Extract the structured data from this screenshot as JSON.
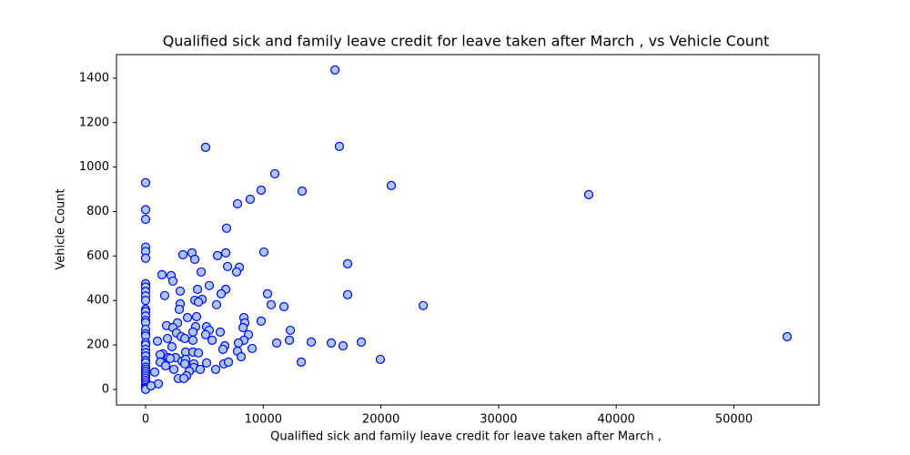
{
  "chart_data": {
    "type": "scatter",
    "title": "Qualified sick and family leave credit for leave taken after March , vs Vehicle Count",
    "x_label": "Qualified sick and family leave credit for leave taken after March ,",
    "y_label": "Vehicle Count",
    "color": "#a8c8f0",
    "edge_color": "#0000ff",
    "xlim": [
      -2475,
      57230
    ],
    "ylim": [
      -70,
      1506
    ],
    "xticks": [
      0,
      10000,
      20000,
      30000,
      40000,
      50000
    ],
    "yticks": [
      0,
      200,
      400,
      600,
      800,
      1000,
      1200,
      1400
    ],
    "x": [
      0,
      0,
      0,
      0,
      0,
      0,
      0,
      0,
      0,
      0,
      0,
      0,
      0,
      0,
      0,
      0,
      0,
      0,
      0,
      0,
      0,
      0,
      0,
      0,
      0,
      0,
      0,
      0,
      0,
      0,
      0,
      0,
      0,
      0,
      0,
      0,
      0,
      0,
      16090,
      5100,
      16470,
      10980,
      20880,
      9820,
      13300,
      8890,
      7810,
      37660,
      6880,
      3940,
      3170,
      6810,
      10050,
      6110,
      4180,
      17170,
      6960,
      7970,
      7730,
      4720,
      1390,
      2170,
      2320,
      5410,
      4410,
      6810,
      2940,
      10360,
      17170,
      1620,
      6420,
      4180,
      4800,
      4490,
      2940,
      10670,
      11760,
      6030,
      23590,
      2860,
      3560,
      4330,
      8350,
      8430,
      9820,
      2710,
      1780,
      2320,
      5180,
      4250,
      8280,
      2630,
      4020,
      6340,
      5410,
      12300,
      3020,
      8740,
      3330,
      5100,
      1860,
      5650,
      4020,
      8350,
      12220,
      1010,
      54520,
      6730,
      2240,
      7890,
      11140,
      14080,
      15780,
      16780,
      18330,
      6570,
      9050,
      1470,
      1240,
      3400,
      4020,
      4490,
      7810,
      1930,
      2550,
      2090,
      8120,
      1240,
      3090,
      3400,
      3330,
      1700,
      4100,
      5180,
      6650,
      7040,
      13230,
      19950,
      2400,
      4100,
      4640,
      5960,
      3710,
      770,
      3480,
      2780,
      3250,
      1080,
      460
    ],
    "values": [
      930,
      808,
      765,
      640,
      620,
      590,
      475,
      460,
      440,
      420,
      400,
      360,
      350,
      330,
      310,
      300,
      270,
      250,
      240,
      210,
      200,
      180,
      165,
      150,
      130,
      120,
      100,
      90,
      80,
      70,
      60,
      50,
      40,
      30,
      20,
      10,
      5,
      0,
      1437,
      1089,
      1093,
      970,
      917,
      896,
      892,
      855,
      835,
      876,
      725,
      614,
      606,
      614,
      618,
      602,
      585,
      565,
      553,
      549,
      528,
      528,
      516,
      512,
      487,
      467,
      450,
      450,
      442,
      430,
      426,
      422,
      430,
      401,
      405,
      393,
      385,
      381,
      372,
      381,
      377,
      360,
      323,
      327,
      323,
      299,
      307,
      299,
      287,
      278,
      282,
      282,
      278,
      254,
      258,
      258,
      266,
      266,
      237,
      246,
      229,
      246,
      229,
      221,
      221,
      221,
      221,
      217,
      237,
      196,
      192,
      209,
      209,
      213,
      209,
      196,
      213,
      180,
      184,
      160,
      156,
      168,
      168,
      164,
      172,
      143,
      143,
      139,
      147,
      123,
      127,
      135,
      115,
      106,
      115,
      119,
      115,
      123,
      123,
      135,
      90,
      98,
      90,
      90,
      82,
      78,
      61,
      49,
      49,
      25,
      16
    ]
  }
}
